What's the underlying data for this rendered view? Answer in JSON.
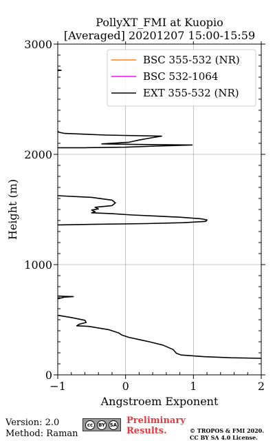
{
  "chart_data": {
    "type": "line",
    "title": "PollyXT_FMI at Kuopio",
    "subtitle": "[Averaged] 20201207 15:00-15:59",
    "xlabel": "Angstroem Exponent",
    "ylabel": "Height (m)",
    "xlim": [
      -1,
      2
    ],
    "ylim": [
      0,
      3000
    ],
    "xticks": [
      -1,
      0,
      1,
      2
    ],
    "xtick_labels": [
      "−1",
      "0",
      "1",
      "2"
    ],
    "yticks": [
      0,
      1000,
      2000,
      3000
    ],
    "ytick_labels": [
      "0",
      "1000",
      "2000",
      "3000"
    ],
    "grid": true,
    "legend_position": "top-right",
    "series": [
      {
        "name": "BSC 355-532 (NR)",
        "color": "#ff7f0e",
        "points": []
      },
      {
        "name": "BSC 532-1064",
        "color": "#ff00ff",
        "points": []
      },
      {
        "name": "EXT 355-532 (NR)",
        "color": "#000000",
        "segments": [
          [
            [
              2.0,
              150
            ],
            [
              1.55,
              155
            ],
            [
              1.15,
              165
            ],
            [
              0.82,
              180
            ],
            [
              0.75,
              195
            ],
            [
              0.7,
              230
            ],
            [
              0.55,
              270
            ],
            [
              0.35,
              300
            ],
            [
              0.2,
              320
            ],
            [
              0.05,
              340
            ],
            [
              -0.05,
              360
            ],
            [
              -0.1,
              380
            ],
            [
              -0.25,
              410
            ],
            [
              -0.45,
              430
            ],
            [
              -0.55,
              440
            ],
            [
              -0.72,
              445
            ],
            [
              -0.68,
              460
            ],
            [
              -0.58,
              475
            ],
            [
              -0.6,
              495
            ],
            [
              -0.8,
              520
            ],
            [
              -1.0,
              540
            ]
          ],
          [
            [
              -1.0,
              690
            ],
            [
              -0.9,
              705
            ],
            [
              -0.77,
              710
            ],
            [
              -0.9,
              712
            ],
            [
              -1.0,
              715
            ]
          ],
          [
            [
              -1.0,
              1360
            ],
            [
              -0.5,
              1365
            ],
            [
              0.3,
              1372
            ],
            [
              0.85,
              1380
            ],
            [
              1.18,
              1392
            ],
            [
              1.2,
              1405
            ],
            [
              1.12,
              1415
            ],
            [
              0.8,
              1430
            ],
            [
              0.45,
              1440
            ],
            [
              0.1,
              1450
            ],
            [
              -0.2,
              1462
            ],
            [
              -0.5,
              1470
            ],
            [
              -0.45,
              1480
            ],
            [
              -0.5,
              1495
            ],
            [
              -0.4,
              1505
            ],
            [
              -0.45,
              1520
            ],
            [
              -0.2,
              1535
            ],
            [
              -0.15,
              1560
            ],
            [
              -0.2,
              1585
            ],
            [
              -0.5,
              1610
            ],
            [
              -1.0,
              1625
            ]
          ],
          [
            [
              -1.0,
              2060
            ],
            [
              -0.6,
              2060
            ],
            [
              0.0,
              2065
            ],
            [
              0.45,
              2075
            ],
            [
              0.98,
              2085
            ],
            [
              0.15,
              2090
            ],
            [
              -0.35,
              2095
            ],
            [
              0.05,
              2110
            ],
            [
              0.2,
              2130
            ],
            [
              0.38,
              2150
            ],
            [
              0.53,
              2165
            ],
            [
              -0.3,
              2175
            ],
            [
              -0.9,
              2190
            ],
            [
              -0.98,
              2200
            ],
            [
              -1.0,
              2210
            ]
          ],
          [
            [
              -1.0,
              2760
            ],
            [
              -0.95,
              2762
            ],
            [
              -1.0,
              2765
            ]
          ]
        ]
      }
    ]
  },
  "footer": {
    "version": "Version: 2.0",
    "method": "Method: Raman",
    "license_badge": {
      "cc": "cc",
      "by": "BY",
      "sa": "SA"
    },
    "preliminary_line1": "Preliminary",
    "preliminary_line2": "Results.",
    "copyright_line1": "© TROPOS & FMI 2020.",
    "copyright_line2": "CC BY SA 4.0 License."
  }
}
